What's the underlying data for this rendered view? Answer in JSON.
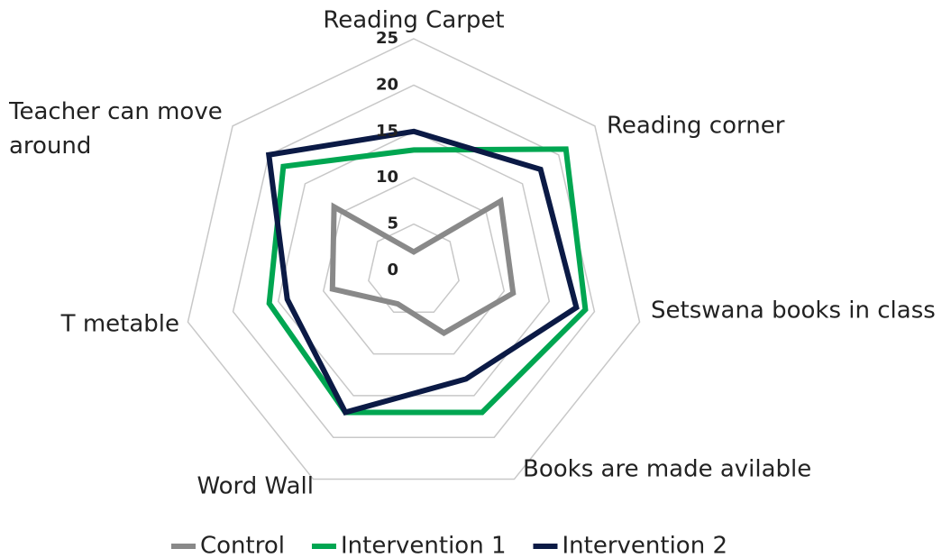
{
  "chart_data": {
    "type": "radar",
    "categories": [
      "Reading Carpet",
      "Reading corner",
      "Setswana books in class",
      "Books are made avilable",
      "Word Wall",
      "T metable",
      "Teacher can move around"
    ],
    "series": [
      {
        "name": "Control",
        "color": "#898989",
        "values": [
          2,
          12,
          11,
          7.5,
          4,
          9,
          11
        ]
      },
      {
        "name": "Intervention 1",
        "color": "#00a651",
        "values": [
          13,
          21,
          19,
          17,
          17,
          16,
          18
        ]
      },
      {
        "name": "Intervention 2",
        "color": "#0b1a45",
        "values": [
          15,
          17.5,
          18,
          13,
          17,
          14,
          20
        ]
      }
    ],
    "rlim": [
      0,
      25
    ],
    "rticks": [
      0,
      5,
      10,
      15,
      20,
      25
    ],
    "grid": true,
    "legend": "bottom"
  }
}
